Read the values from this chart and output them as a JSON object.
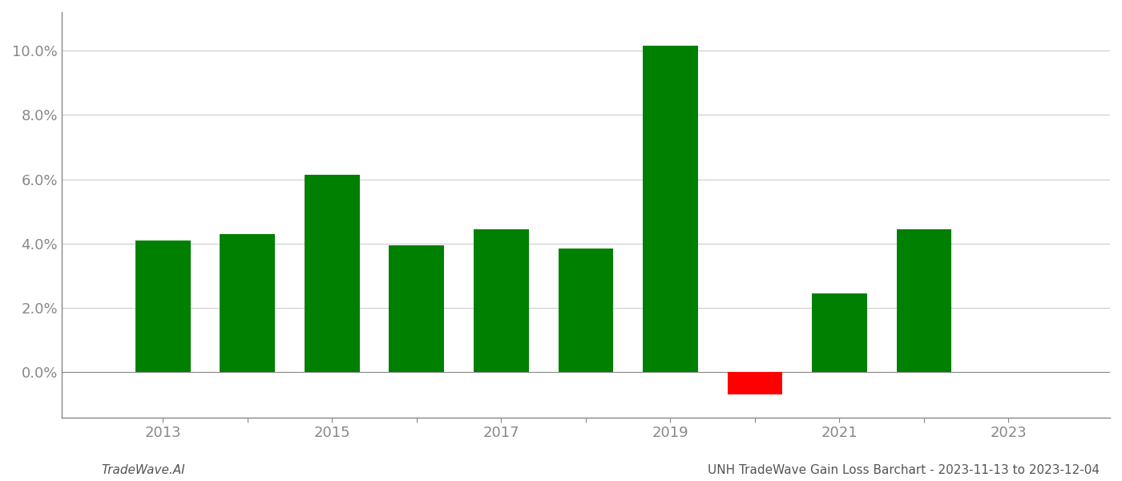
{
  "years": [
    2013,
    2014,
    2015,
    2016,
    2017,
    2018,
    2019,
    2020,
    2021,
    2022
  ],
  "values": [
    0.041,
    0.043,
    0.0615,
    0.0395,
    0.0445,
    0.0385,
    0.1015,
    -0.007,
    0.0245,
    0.0445
  ],
  "colors": [
    "#008000",
    "#008000",
    "#008000",
    "#008000",
    "#008000",
    "#008000",
    "#008000",
    "#ff0000",
    "#008000",
    "#008000"
  ],
  "ylim": [
    -0.014,
    0.112
  ],
  "yticks": [
    0.0,
    0.02,
    0.04,
    0.06,
    0.08,
    0.1
  ],
  "xlim": [
    2011.8,
    2024.2
  ],
  "bar_width": 0.65,
  "background_color": "#ffffff",
  "grid_color": "#cccccc",
  "tick_label_color": "#888888",
  "footer_left": "TradeWave.AI",
  "footer_right": "UNH TradeWave Gain Loss Barchart - 2023-11-13 to 2023-12-04",
  "footer_fontsize": 11,
  "tick_fontsize": 13,
  "spine_color": "#888888"
}
